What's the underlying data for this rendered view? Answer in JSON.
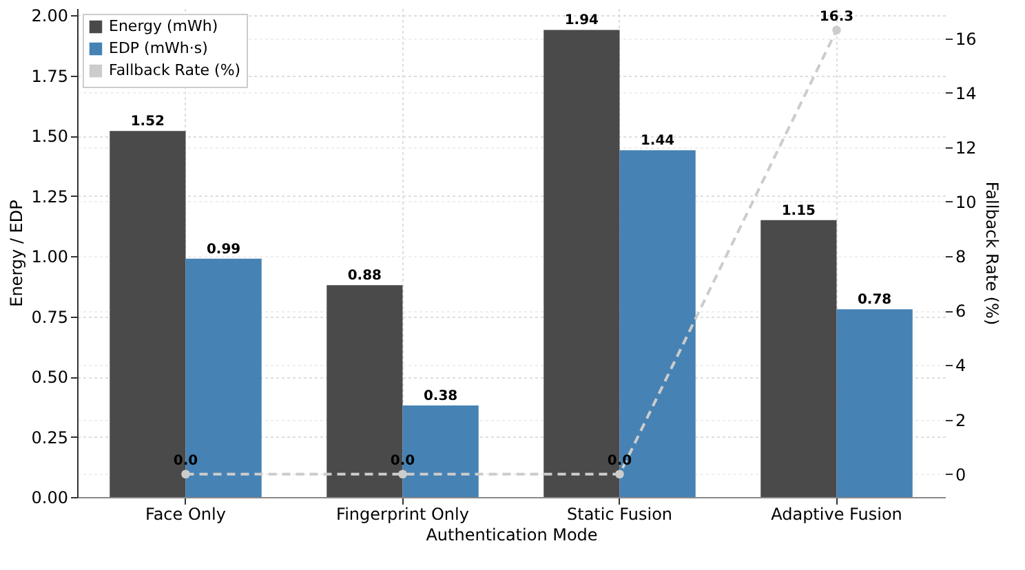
{
  "chart_data": {
    "type": "bar",
    "xlabel": "Authentication Mode",
    "ylabel": "Energy / EDP",
    "y2label": "Fallback Rate (%)",
    "categories": [
      "Face Only",
      "Fingerprint Only",
      "Static Fusion",
      "Adaptive Fusion"
    ],
    "series": [
      {
        "name": "Energy (mWh)",
        "color": "#4a4a4a",
        "values": [
          1.52,
          0.88,
          1.94,
          1.15
        ]
      },
      {
        "name": "EDP (mWh·s)",
        "color": "#4682b4",
        "values": [
          0.99,
          0.38,
          1.44,
          0.78
        ]
      },
      {
        "name": "Fallback Rate (%)",
        "type": "line",
        "axis": "y2",
        "color": "#cccccc",
        "marker": "circle",
        "line_style": "dashed",
        "values": [
          0.0,
          0.0,
          0.0,
          16.3
        ],
        "value_labels": [
          "0.0",
          "0.0",
          "0.0",
          "16.3"
        ]
      }
    ],
    "ylim": [
      0,
      2.03
    ],
    "yticks": [
      {
        "value": 0,
        "label": "0.00"
      },
      0.25,
      {
        "value": 0.5,
        "label": "0.50"
      },
      0.75,
      {
        "value": 1,
        "label": "1.00"
      },
      1.25,
      {
        "value": 1.5,
        "label": "1.50"
      },
      1.75,
      {
        "value": 2,
        "label": "2.00"
      }
    ],
    "y2lim": [
      -0.84,
      17.1
    ],
    "y2ticks": [
      0,
      2,
      4,
      6,
      8,
      10,
      12,
      14,
      16
    ],
    "grid": true,
    "legend": "top left",
    "data_labels": true
  }
}
